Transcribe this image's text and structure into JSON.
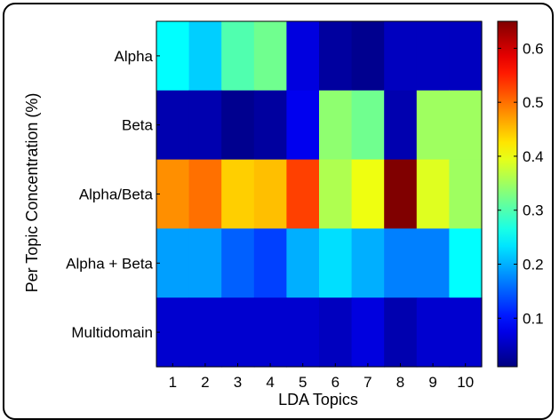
{
  "chart_data": {
    "type": "heatmap",
    "title": "",
    "xlabel": "LDA Topics",
    "ylabel": "Per Topic Concentration (%)",
    "x": [
      "1",
      "2",
      "3",
      "4",
      "5",
      "6",
      "7",
      "8",
      "9",
      "10"
    ],
    "y": [
      "Alpha",
      "Beta",
      "Alpha/Beta",
      "Alpha + Beta",
      "Multidomain"
    ],
    "values": [
      [
        0.25,
        0.22,
        0.3,
        0.32,
        0.07,
        0.03,
        0.02,
        0.05,
        0.05,
        0.05
      ],
      [
        0.04,
        0.04,
        0.02,
        0.03,
        0.08,
        0.34,
        0.32,
        0.04,
        0.35,
        0.35
      ],
      [
        0.48,
        0.5,
        0.44,
        0.45,
        0.53,
        0.36,
        0.4,
        0.65,
        0.39,
        0.35
      ],
      [
        0.19,
        0.19,
        0.15,
        0.13,
        0.2,
        0.23,
        0.2,
        0.17,
        0.17,
        0.25
      ],
      [
        0.06,
        0.06,
        0.06,
        0.06,
        0.06,
        0.05,
        0.07,
        0.04,
        0.06,
        0.06
      ]
    ],
    "colormap": "jet",
    "colorbar": {
      "range": [
        0.01,
        0.65
      ],
      "ticks": [
        0.1,
        0.2,
        0.3,
        0.4,
        0.5,
        0.6
      ],
      "tick_labels": [
        "0.1",
        "0.2",
        "0.3",
        "0.4",
        "0.5",
        "0.6"
      ]
    }
  }
}
